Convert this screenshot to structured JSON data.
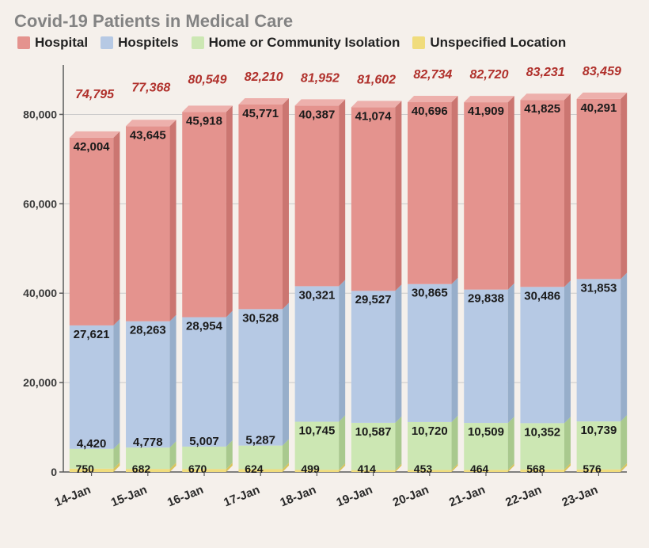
{
  "title": "Covid-19 Patients in Medical Care",
  "background_color": "#f5f0eb",
  "title_color": "#838383",
  "title_fontsize": 22,
  "chart": {
    "type": "stacked-bar-3d",
    "ylim": [
      0,
      90000
    ],
    "ytick_step": 20000,
    "yticks": [
      "0",
      "20,000",
      "40,000",
      "60,000",
      "80,000"
    ],
    "axis_color": "#5a5a5a",
    "grid_color": "#c9c9c9",
    "bar_depth": 8,
    "series": [
      {
        "key": "unspecified",
        "label": "Unspecified Location",
        "fill": "#f0dc7c",
        "side": "#d8c45e",
        "top": "#f7e9a0"
      },
      {
        "key": "home",
        "label": "Home or Community Isolation",
        "fill": "#cce7b3",
        "side": "#a9c98e",
        "top": "#def0cd"
      },
      {
        "key": "hospitels",
        "label": "Hospitels",
        "fill": "#b6c9e4",
        "side": "#97aeca",
        "top": "#cfdbef"
      },
      {
        "key": "hospital",
        "label": "Hospital",
        "fill": "#e4938e",
        "side": "#cb7671",
        "top": "#edb0ac"
      }
    ],
    "legend_order": [
      "hospital",
      "hospitels",
      "home",
      "unspecified"
    ],
    "total_label_color": "#b0302b",
    "total_label_fontsize": 16,
    "seg_label_fontsize": 15,
    "axis_label_fontsize": 14,
    "categories": [
      "14-Jan",
      "15-Jan",
      "16-Jan",
      "17-Jan",
      "18-Jan",
      "19-Jan",
      "20-Jan",
      "21-Jan",
      "22-Jan",
      "23-Jan"
    ],
    "data": [
      {
        "date": "14-Jan",
        "unspecified": 750,
        "home": 4420,
        "hospitels": 27621,
        "hospital": 42004,
        "total": 74795
      },
      {
        "date": "15-Jan",
        "unspecified": 682,
        "home": 4778,
        "hospitels": 28263,
        "hospital": 43645,
        "total": 77368
      },
      {
        "date": "16-Jan",
        "unspecified": 670,
        "home": 5007,
        "hospitels": 28954,
        "hospital": 45918,
        "total": 80549
      },
      {
        "date": "17-Jan",
        "unspecified": 624,
        "home": 5287,
        "hospitels": 30528,
        "hospital": 45771,
        "total": 82210
      },
      {
        "date": "18-Jan",
        "unspecified": 499,
        "home": 10745,
        "hospitels": 30321,
        "hospital": 40387,
        "total": 81952
      },
      {
        "date": "19-Jan",
        "unspecified": 414,
        "home": 10587,
        "hospitels": 29527,
        "hospital": 41074,
        "total": 81602
      },
      {
        "date": "20-Jan",
        "unspecified": 453,
        "home": 10720,
        "hospitels": 30865,
        "hospital": 40696,
        "total": 82734
      },
      {
        "date": "21-Jan",
        "unspecified": 464,
        "home": 10509,
        "hospitels": 29838,
        "hospital": 41909,
        "total": 82720
      },
      {
        "date": "22-Jan",
        "unspecified": 568,
        "home": 10352,
        "hospitels": 30486,
        "hospital": 41825,
        "total": 83231
      },
      {
        "date": "23-Jan",
        "unspecified": 576,
        "home": 10739,
        "hospitels": 31853,
        "hospital": 40291,
        "total": 83459
      }
    ],
    "total_label_offsets": [
      42,
      36,
      28,
      22,
      22,
      22,
      22,
      22,
      22,
      22
    ]
  }
}
